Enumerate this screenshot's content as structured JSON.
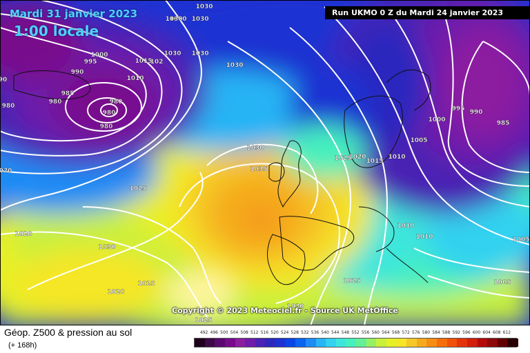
{
  "header": {
    "date": "Mardi 31 janvier 2023",
    "local_time": "1:00 locale",
    "run_info": "Run UKMO 0 Z du Mardi 24 janvier 2023"
  },
  "copyright": "Copyright © 2023 Meteociel.fr - Source UK MetOffice",
  "footer": {
    "product_title": "Géop. Z500 & pression au sol",
    "lead_time": "(+ 168h)"
  },
  "legend": {
    "values": [
      "492",
      "496",
      "500",
      "504",
      "508",
      "512",
      "516",
      "520",
      "524",
      "528",
      "532",
      "536",
      "540",
      "544",
      "548",
      "552",
      "556",
      "560",
      "564",
      "568",
      "572",
      "576",
      "580",
      "584",
      "588",
      "592",
      "596",
      "600",
      "604",
      "608",
      "612"
    ],
    "colors": [
      "#1e001e",
      "#3c0a46",
      "#5a0a6e",
      "#780a8c",
      "#8c1ea0",
      "#6e1eaa",
      "#4a22b4",
      "#2c28be",
      "#1e32d2",
      "#0a46e6",
      "#0a64f0",
      "#1e8cf5",
      "#28b4f5",
      "#32d2f0",
      "#3ce6dc",
      "#46f0be",
      "#64f096",
      "#96f064",
      "#c8f03c",
      "#e6f028",
      "#f5e628",
      "#f5c828",
      "#f5aa1e",
      "#f58c14",
      "#f56e0a",
      "#f0500a",
      "#e6320a",
      "#d21e0a",
      "#b40a0a",
      "#8c0a0a",
      "#640000",
      "#280000"
    ]
  },
  "map": {
    "isobar_labels": [
      {
        "text": "1030"
      },
      {
        "text": "1030"
      },
      {
        "text": "1030"
      },
      {
        "text": "1030"
      },
      {
        "text": "1030"
      },
      {
        "text": "1000"
      },
      {
        "text": "995"
      },
      {
        "text": "990"
      },
      {
        "text": "985"
      },
      {
        "text": "980"
      },
      {
        "text": "980"
      },
      {
        "text": "980"
      },
      {
        "text": "980"
      },
      {
        "text": "1010"
      },
      {
        "text": "1015"
      },
      {
        "text": "102"
      },
      {
        "text": "1030"
      },
      {
        "text": "1030"
      },
      {
        "text": "1035"
      },
      {
        "text": "1025"
      },
      {
        "text": "1020"
      },
      {
        "text": "1030"
      },
      {
        "text": "1025"
      },
      {
        "text": "1020"
      },
      {
        "text": "1025"
      },
      {
        "text": "1030"
      },
      {
        "text": "1025"
      },
      {
        "text": "1020"
      },
      {
        "text": "1015"
      },
      {
        "text": "1010"
      },
      {
        "text": "1010"
      },
      {
        "text": "1010"
      },
      {
        "text": "1005"
      },
      {
        "text": "1005"
      },
      {
        "text": "1000"
      },
      {
        "text": "995"
      },
      {
        "text": "990"
      },
      {
        "text": "985"
      },
      {
        "text": "1005"
      },
      {
        "text": "1025"
      },
      {
        "text": "020"
      },
      {
        "text": "90"
      },
      {
        "text": "980"
      },
      {
        "text": "1030"
      }
    ]
  }
}
